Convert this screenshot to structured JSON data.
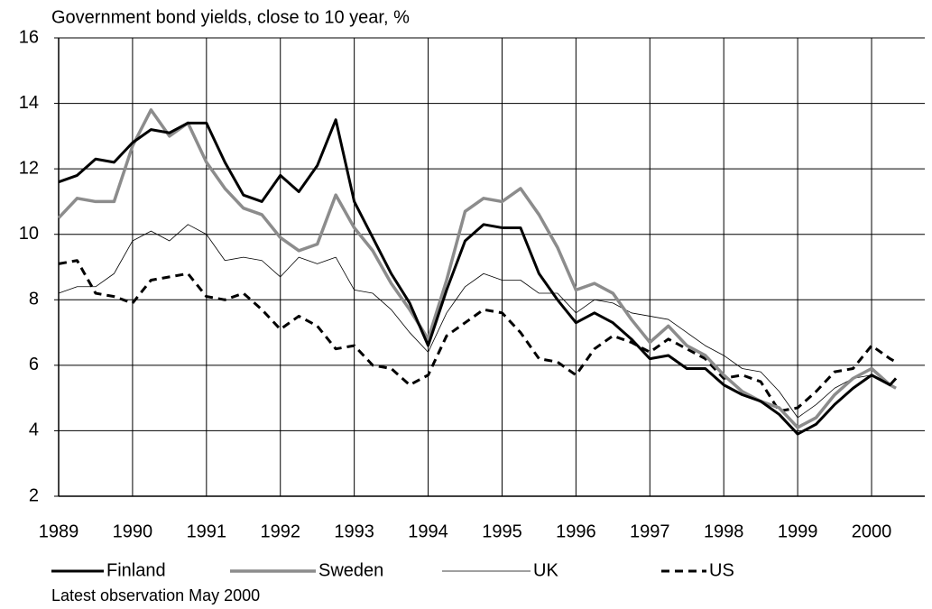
{
  "chart_data": {
    "type": "line",
    "title": "Government bond yields, close to 10 year, %",
    "note": "Latest observation May 2000",
    "x": [
      1989,
      1989.25,
      1989.5,
      1989.75,
      1990,
      1990.25,
      1990.5,
      1990.75,
      1991,
      1991.25,
      1991.5,
      1991.75,
      1992,
      1992.25,
      1992.5,
      1992.75,
      1993,
      1993.25,
      1993.5,
      1993.75,
      1994,
      1994.25,
      1994.5,
      1994.75,
      1995,
      1995.25,
      1995.5,
      1995.75,
      1996,
      1996.25,
      1996.5,
      1996.75,
      1997,
      1997.25,
      1997.5,
      1997.75,
      1998,
      1998.25,
      1998.5,
      1998.75,
      1999,
      1999.25,
      1999.5,
      1999.75,
      2000,
      2000.25,
      2000.33
    ],
    "series": [
      {
        "name": "Finland",
        "color": "#000000",
        "line_width": 3,
        "dash": "none",
        "values": [
          11.6,
          11.8,
          12.3,
          12.2,
          12.8,
          13.2,
          13.1,
          13.4,
          13.4,
          12.2,
          11.2,
          11.0,
          11.8,
          11.3,
          12.1,
          13.5,
          11.0,
          9.9,
          8.8,
          7.9,
          6.6,
          8.3,
          9.8,
          10.3,
          10.2,
          10.2,
          8.8,
          8.0,
          7.3,
          7.6,
          7.3,
          6.8,
          6.2,
          6.3,
          5.9,
          5.9,
          5.4,
          5.1,
          4.9,
          4.5,
          3.9,
          4.2,
          4.8,
          5.3,
          5.7,
          5.4,
          5.6
        ]
      },
      {
        "name": "Sweden",
        "color": "#8c8c8c",
        "line_width": 3.5,
        "dash": "none",
        "values": [
          10.5,
          11.1,
          11.0,
          11.0,
          12.7,
          13.8,
          13.0,
          13.4,
          12.2,
          11.4,
          10.8,
          10.6,
          9.9,
          9.5,
          9.7,
          11.2,
          10.2,
          9.5,
          8.5,
          7.7,
          6.8,
          8.6,
          10.7,
          11.1,
          11.0,
          11.4,
          10.6,
          9.6,
          8.3,
          8.5,
          8.2,
          7.4,
          6.7,
          7.2,
          6.6,
          6.3,
          5.7,
          5.2,
          4.9,
          4.7,
          4.1,
          4.4,
          5.1,
          5.6,
          5.9,
          5.4,
          5.3
        ]
      },
      {
        "name": "UK",
        "color": "#000000",
        "line_width": 0.8,
        "dash": "none",
        "values": [
          8.2,
          8.4,
          8.4,
          8.8,
          9.8,
          10.1,
          9.8,
          10.3,
          10.0,
          9.2,
          9.3,
          9.2,
          8.7,
          9.3,
          9.1,
          9.3,
          8.3,
          8.2,
          7.7,
          7.0,
          6.4,
          7.6,
          8.4,
          8.8,
          8.6,
          8.6,
          8.2,
          8.2,
          7.6,
          8.0,
          7.9,
          7.6,
          7.5,
          7.4,
          7.0,
          6.6,
          6.3,
          5.9,
          5.8,
          5.2,
          4.4,
          4.8,
          5.3,
          5.6,
          5.7,
          5.4,
          5.3
        ]
      },
      {
        "name": "US",
        "color": "#000000",
        "line_width": 3,
        "dash": "9 6",
        "values": [
          9.1,
          9.2,
          8.2,
          8.1,
          7.9,
          8.6,
          8.7,
          8.8,
          8.1,
          8.0,
          8.2,
          7.7,
          7.1,
          7.5,
          7.2,
          6.5,
          6.6,
          6.0,
          5.9,
          5.4,
          5.7,
          6.9,
          7.3,
          7.7,
          7.6,
          7.0,
          6.2,
          6.1,
          5.7,
          6.5,
          6.9,
          6.7,
          6.4,
          6.8,
          6.5,
          6.2,
          5.6,
          5.7,
          5.5,
          4.6,
          4.7,
          5.2,
          5.8,
          5.9,
          6.6,
          6.2,
          6.1
        ]
      }
    ],
    "xlim": [
      1989,
      2000.72
    ],
    "xticks": [
      1989,
      1990,
      1991,
      1992,
      1993,
      1994,
      1995,
      1996,
      1997,
      1998,
      1999,
      2000
    ],
    "ylim": [
      2,
      16
    ],
    "yticks": [
      2,
      4,
      6,
      8,
      10,
      12,
      14,
      16
    ],
    "grid": true
  }
}
